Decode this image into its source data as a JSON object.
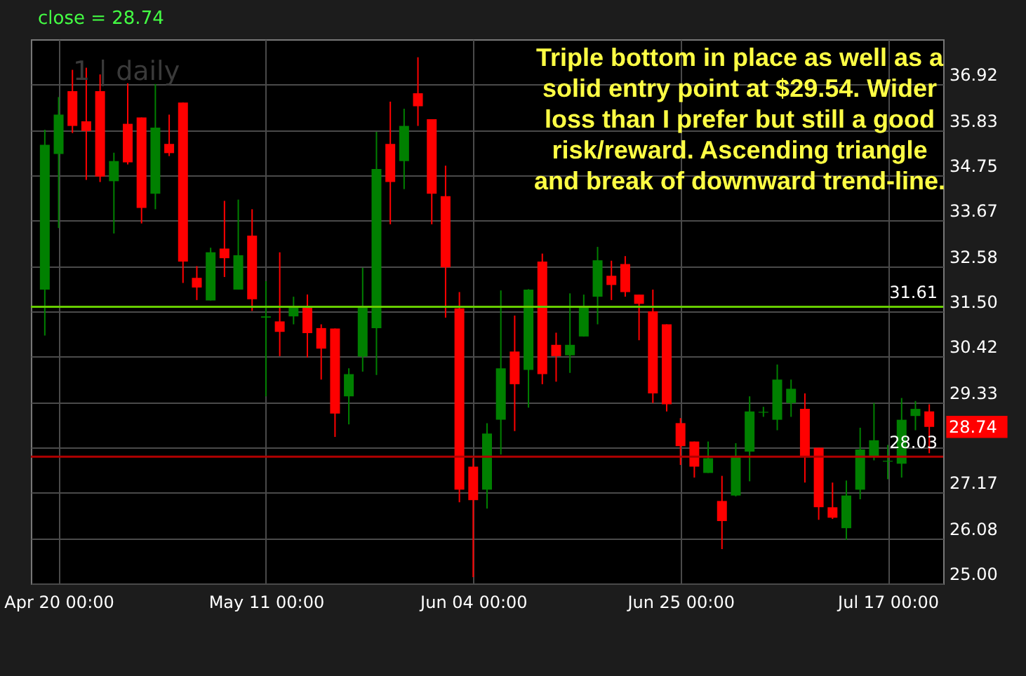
{
  "chart_data": {
    "type": "candlestick",
    "title": "close = 28.74",
    "subtitle": "1 | daily",
    "categories": [
      null,
      "Apr 20 00:00",
      null,
      null,
      null,
      null,
      null,
      null,
      null,
      null,
      null,
      null,
      null,
      null,
      null,
      null,
      "May 11 00:00",
      null,
      null,
      null,
      null,
      null,
      null,
      null,
      null,
      null,
      null,
      null,
      null,
      null,
      null,
      "Jun 04 00:00",
      null,
      null,
      null,
      null,
      null,
      null,
      null,
      null,
      null,
      null,
      null,
      null,
      null,
      null,
      "Jun 25 00:00",
      null,
      null,
      null,
      null,
      null,
      null,
      null,
      null,
      null,
      null,
      null,
      null,
      null,
      null,
      "Jul 17 00:00",
      null,
      null,
      null
    ],
    "ohlc": [
      [
        32.02,
        35.84,
        30.92,
        35.48
      ],
      [
        35.26,
        36.62,
        33.49,
        36.2
      ],
      [
        36.76,
        37.27,
        35.76,
        35.93
      ],
      [
        36.04,
        37.32,
        34.64,
        35.81
      ],
      [
        36.76,
        37.16,
        34.59,
        34.72
      ],
      [
        34.61,
        35.29,
        33.36,
        35.09
      ],
      [
        35.98,
        36.95,
        35.01,
        35.06
      ],
      [
        36.13,
        36.13,
        33.6,
        33.97
      ],
      [
        34.31,
        36.93,
        33.94,
        35.89
      ],
      [
        35.5,
        36.2,
        35.21,
        35.28
      ],
      [
        36.49,
        36.49,
        32.18,
        32.69
      ],
      [
        32.3,
        32.58,
        31.77,
        32.07
      ],
      [
        31.76,
        33.02,
        31.76,
        32.91
      ],
      [
        33.0,
        34.14,
        32.32,
        32.77
      ],
      [
        32.02,
        34.17,
        32.02,
        32.84
      ],
      [
        33.31,
        33.94,
        31.51,
        31.79
      ],
      [
        31.35,
        32.22,
        29.47,
        31.38
      ],
      [
        31.26,
        32.91,
        30.43,
        31.01
      ],
      [
        31.38,
        31.85,
        31.19,
        31.59
      ],
      [
        31.59,
        31.9,
        30.4,
        30.98
      ],
      [
        31.1,
        31.19,
        29.87,
        30.61
      ],
      [
        31.09,
        31.09,
        28.5,
        29.06
      ],
      [
        29.47,
        30.14,
        28.8,
        30.0
      ],
      [
        30.42,
        32.54,
        30.06,
        31.63
      ],
      [
        31.1,
        35.79,
        29.98,
        34.9
      ],
      [
        35.5,
        36.51,
        33.58,
        34.59
      ],
      [
        35.09,
        36.34,
        34.42,
        35.93
      ],
      [
        36.71,
        37.57,
        35.93,
        36.4
      ],
      [
        36.09,
        36.09,
        33.58,
        34.31
      ],
      [
        34.25,
        34.98,
        31.35,
        32.55
      ],
      [
        31.57,
        31.96,
        26.94,
        27.24
      ],
      [
        27.79,
        27.99,
        25.15,
        26.99
      ],
      [
        27.24,
        28.83,
        26.79,
        28.58
      ],
      [
        28.91,
        32.0,
        28.08,
        30.14
      ],
      [
        30.54,
        31.4,
        28.64,
        29.76
      ],
      [
        30.1,
        32.03,
        29.2,
        32.02
      ],
      [
        32.69,
        32.88,
        29.76,
        30.0
      ],
      [
        30.7,
        30.99,
        29.82,
        30.43
      ],
      [
        30.45,
        31.93,
        30.03,
        30.7
      ],
      [
        30.9,
        31.9,
        30.9,
        31.63
      ],
      [
        31.85,
        33.04,
        31.19,
        32.72
      ],
      [
        32.35,
        32.71,
        31.77,
        32.13
      ],
      [
        32.63,
        32.82,
        31.85,
        31.96
      ],
      [
        31.9,
        31.9,
        30.81,
        31.68
      ],
      [
        31.5,
        32.02,
        29.31,
        29.54
      ],
      [
        31.19,
        31.19,
        29.11,
        29.28
      ],
      [
        28.83,
        28.95,
        27.83,
        28.28
      ],
      [
        28.39,
        28.39,
        27.53,
        27.79
      ],
      [
        27.64,
        28.39,
        27.64,
        27.99
      ],
      [
        26.97,
        27.57,
        25.82,
        26.49
      ],
      [
        27.1,
        28.35,
        27.08,
        28.05
      ],
      [
        28.15,
        29.47,
        27.44,
        29.11
      ],
      [
        29.08,
        29.22,
        28.98,
        29.1
      ],
      [
        28.91,
        30.23,
        28.66,
        29.87
      ],
      [
        29.31,
        29.87,
        28.98,
        29.65
      ],
      [
        29.17,
        29.54,
        27.41,
        28.05
      ],
      [
        28.24,
        28.24,
        26.52,
        26.82
      ],
      [
        26.82,
        27.41,
        26.54,
        26.57
      ],
      [
        26.32,
        27.46,
        26.04,
        27.1
      ],
      [
        27.24,
        28.72,
        27.01,
        28.2
      ],
      [
        28.02,
        29.31,
        27.94,
        28.42
      ],
      [
        27.91,
        28.31,
        27.49,
        27.93
      ],
      [
        27.86,
        29.43,
        27.53,
        28.91
      ],
      [
        29.0,
        29.36,
        28.66,
        29.17
      ],
      [
        29.11,
        29.28,
        28.11,
        28.74
      ]
    ],
    "colors": [
      "#008000",
      "#008000",
      "#ff0000",
      "#ff0000",
      "#ff0000",
      "#008000",
      "#ff0000",
      "#ff0000",
      "#008000",
      "#ff0000",
      "#ff0000",
      "#ff0000",
      "#008000",
      "#ff0000",
      "#008000",
      "#ff0000",
      "#008000",
      "#ff0000",
      "#008000",
      "#ff0000",
      "#ff0000",
      "#ff0000",
      "#008000",
      "#008000",
      "#008000",
      "#ff0000",
      "#008000",
      "#ff0000",
      "#ff0000",
      "#ff0000",
      "#ff0000",
      "#ff0000",
      "#008000",
      "#008000",
      "#ff0000",
      "#008000",
      "#ff0000",
      "#ff0000",
      "#008000",
      "#008000",
      "#008000",
      "#ff0000",
      "#ff0000",
      "#ff0000",
      "#ff0000",
      "#ff0000",
      "#ff0000",
      "#ff0000",
      "#008000",
      "#ff0000",
      "#008000",
      "#008000",
      "#008000",
      "#008000",
      "#008000",
      "#ff0000",
      "#ff0000",
      "#ff0000",
      "#008000",
      "#008000",
      "#008000",
      "#008000",
      "#008000",
      "#008000",
      "#ff0000"
    ],
    "ylim": [
      25,
      38
    ],
    "yticks": [
      {
        "value": 25,
        "label": "25.00"
      },
      26.08,
      27.17,
      {
        "value": 28.25,
        "label": null
      },
      29.33,
      30.42,
      {
        "value": 31.5,
        "label": "31.50"
      },
      32.58,
      33.67,
      34.75,
      35.83,
      36.92
    ],
    "grid": true,
    "ref_lines": [
      {
        "axis": "y",
        "value": 31.61,
        "label": "31.61",
        "color": "#66cc00"
      },
      {
        "axis": "y",
        "value": 28.03,
        "label": "28.03",
        "color": "#b00000"
      }
    ],
    "annotations": [
      "Triple bottom in place as well as a\nsolid entry point at $29.54. Wider\nloss than I prefer but still a good\nrisk/reward. Ascending triangle\nand break of downward trend-line.",
      "28.74"
    ]
  }
}
